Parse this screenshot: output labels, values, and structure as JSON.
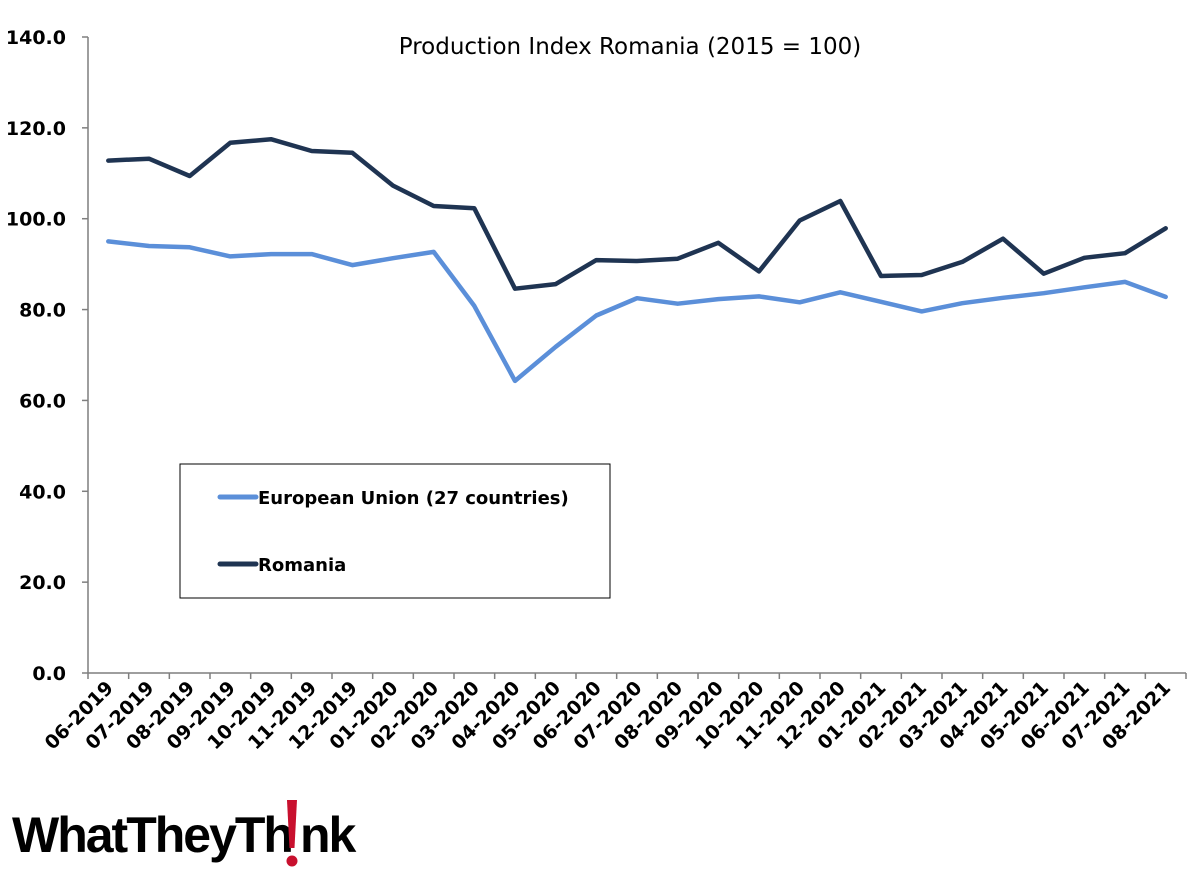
{
  "chart_data": {
    "type": "line",
    "title": "Production Index Romania (2015 = 100)",
    "xlabel": "",
    "ylabel": "",
    "ylim": [
      0,
      140
    ],
    "yticks": [
      "0.0",
      "20.0",
      "40.0",
      "60.0",
      "80.0",
      "100.0",
      "120.0",
      "140.0"
    ],
    "categories": [
      "06-2019",
      "07-2019",
      "08-2019",
      "09-2019",
      "10-2019",
      "11-2019",
      "12-2019",
      "01-2020",
      "02-2020",
      "03-2020",
      "04-2020",
      "05-2020",
      "06-2020",
      "07-2020",
      "08-2020",
      "09-2020",
      "10-2020",
      "11-2020",
      "12-2020",
      "01-2021",
      "02-2021",
      "03-2021",
      "04-2021",
      "05-2021",
      "06-2021",
      "07-2021",
      "08-2021"
    ],
    "series": [
      {
        "name": "European Union (27 countries)",
        "color": "#5B8FD9",
        "values": [
          95.0,
          94.0,
          93.7,
          91.7,
          92.2,
          92.2,
          89.8,
          91.3,
          92.7,
          80.8,
          64.3,
          71.8,
          78.7,
          82.5,
          81.3,
          82.3,
          82.9,
          81.6,
          83.8,
          81.7,
          79.6,
          81.4,
          82.6,
          83.6,
          84.9,
          86.1,
          82.8
        ]
      },
      {
        "name": "Romania",
        "color": "#1F3452",
        "values": [
          112.8,
          113.2,
          109.4,
          116.7,
          117.5,
          114.9,
          114.5,
          107.3,
          102.8,
          102.3,
          84.6,
          85.6,
          90.9,
          90.7,
          91.2,
          94.7,
          88.4,
          99.6,
          103.9,
          87.4,
          87.6,
          90.5,
          95.6,
          87.9,
          91.4,
          92.4,
          97.9
        ]
      }
    ],
    "legend_position": "center-left",
    "grid": false
  },
  "logo": {
    "text": "WhatTheyThink",
    "exclamation_color": "#C8102E"
  }
}
